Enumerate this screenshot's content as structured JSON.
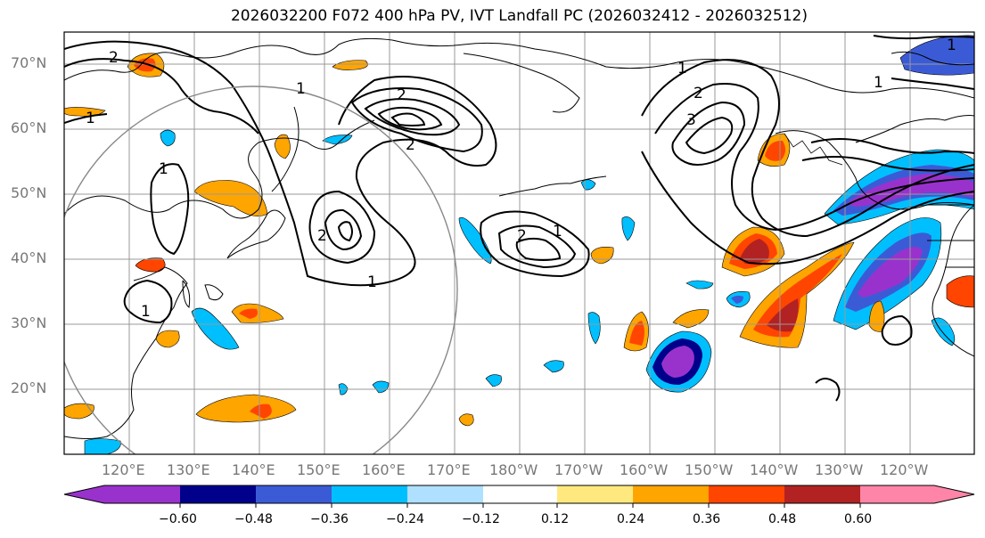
{
  "title": "2026032200 F072 400 hPa PV, IVT Landfall PC (2026032412 - 2026032512)",
  "latitude_labels": [
    "70°N",
    "60°N",
    "50°N",
    "40°N",
    "30°N",
    "20°N"
  ],
  "longitude_labels": [
    "120°E",
    "130°E",
    "140°E",
    "150°E",
    "160°E",
    "170°E",
    "180°W",
    "170°W",
    "160°W",
    "150°W",
    "140°W",
    "130°W",
    "120°W"
  ],
  "colorbar": {
    "tick_labels": [
      "−0.60",
      "−0.48",
      "−0.36",
      "−0.24",
      "−0.12",
      "0.12",
      "0.24",
      "0.36",
      "0.48",
      "0.60"
    ],
    "colors": [
      "#9932cc",
      "#00008b",
      "#3b5bd6",
      "#00bfff",
      "#b0e0ff",
      "#ffffff",
      "#ffe97f",
      "#ffa500",
      "#ff4500",
      "#b22222",
      "#ff85a8"
    ]
  },
  "contour_labels": [
    "1",
    "2",
    "3"
  ],
  "colors": {
    "coast": "#000000",
    "grid": "#999999",
    "circle": "#888888",
    "label": "#777777"
  }
}
